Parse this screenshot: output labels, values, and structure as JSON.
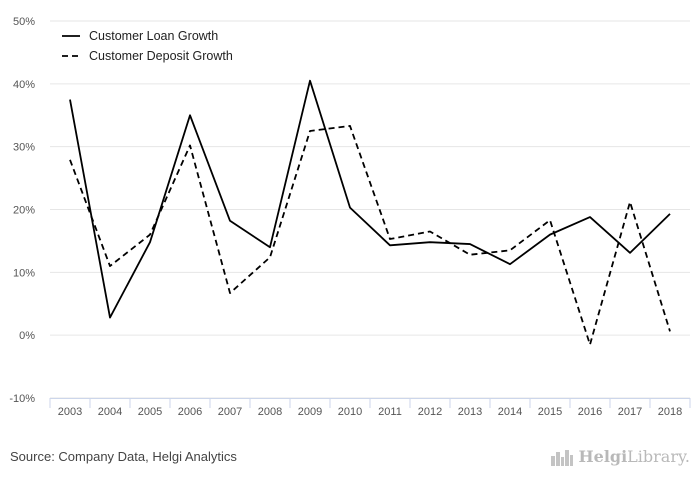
{
  "chart_data": {
    "type": "line",
    "categories": [
      "2003",
      "2004",
      "2005",
      "2006",
      "2007",
      "2008",
      "2009",
      "2010",
      "2011",
      "2012",
      "2013",
      "2014",
      "2015",
      "2016",
      "2017",
      "2018"
    ],
    "series": [
      {
        "name": "Customer Loan Growth",
        "style": "solid",
        "values": [
          37.5,
          2.8,
          14.8,
          35.0,
          18.2,
          14.0,
          40.5,
          20.3,
          14.3,
          14.8,
          14.5,
          11.3,
          16.0,
          18.8,
          13.1,
          19.3
        ]
      },
      {
        "name": "Customer Deposit Growth",
        "style": "dashed",
        "values": [
          27.9,
          11.0,
          16.0,
          30.2,
          6.7,
          12.4,
          32.5,
          33.3,
          15.3,
          16.5,
          12.8,
          13.5,
          18.3,
          -1.5,
          21.2,
          0.6
        ]
      }
    ],
    "y_ticks": [
      "50%",
      "40%",
      "30%",
      "20%",
      "10%",
      "0%",
      "-10%"
    ],
    "ylim": [
      -10,
      50
    ],
    "grid": true,
    "legend_position": "top-left",
    "line_color": "#000000"
  },
  "footer": {
    "source": "Source: Company Data, Helgi Analytics",
    "brand_name_bold": "Helgi",
    "brand_name_rest": "Library."
  },
  "icons": {
    "brand": "city-skyline-icon"
  }
}
